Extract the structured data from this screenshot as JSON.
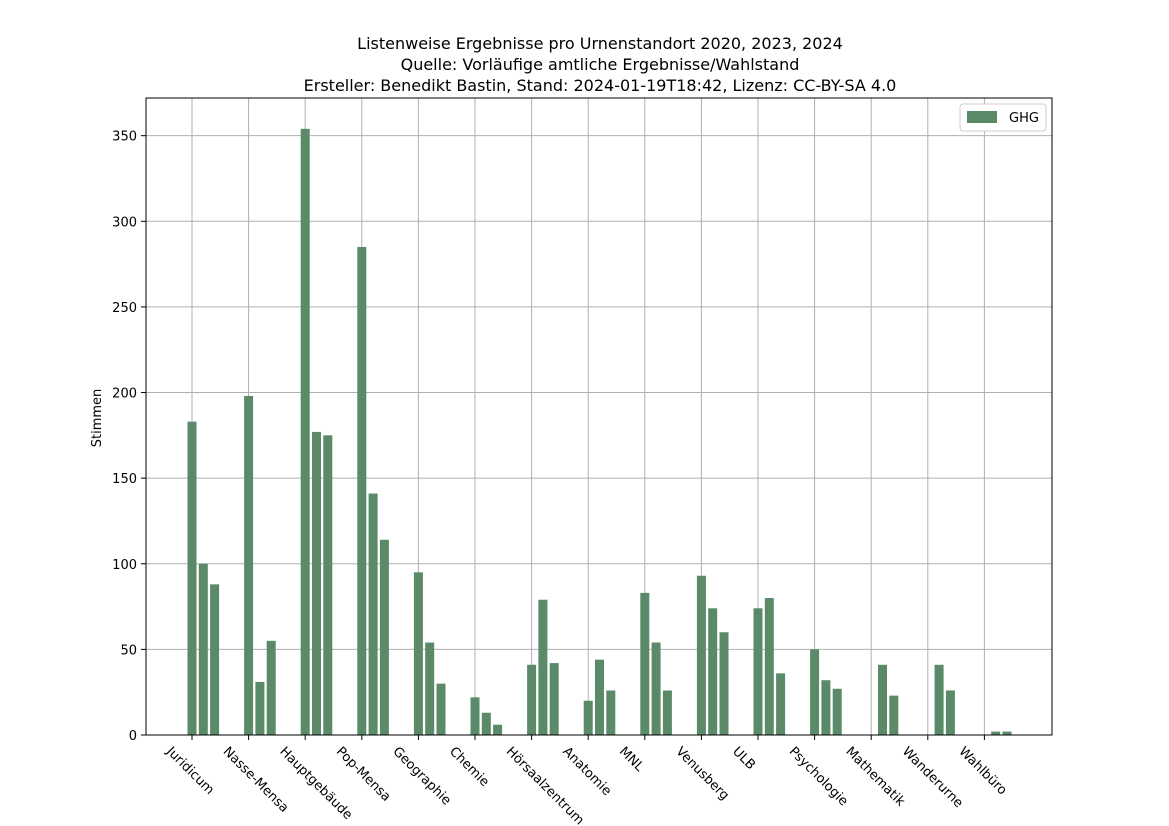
{
  "chart_data": {
    "type": "bar",
    "title_lines": [
      "Listenweise Ergebnisse pro Urnenstandort 2020, 2023, 2024",
      "Quelle: Vorläufige amtliche Ergebnisse/Wahlstand",
      "Ersteller: Benedikt Bastin, Stand: 2024-01-19T18:42, Lizenz: CC-BY-SA 4.0"
    ],
    "xlabel": "",
    "ylabel": "Stimmen",
    "ylim": [
      0,
      372
    ],
    "yticks": [
      0,
      50,
      100,
      150,
      200,
      250,
      300,
      350
    ],
    "grid": true,
    "legend": {
      "position": "top-right",
      "entries": [
        "GHG"
      ]
    },
    "categories": [
      "Juridicum",
      "Nasse-Mensa",
      "Hauptgebäude",
      "Pop-Mensa",
      "Geographie",
      "Chemie",
      "Hörsaalzentrum",
      "Anatomie",
      "MNL",
      "Venusberg",
      "ULB",
      "Psychologie",
      "Mathematik",
      "Wanderurne",
      "Wahlbüro"
    ],
    "series": [
      {
        "name": "GHG",
        "color": "#5a8a68",
        "values": [
          [
            183,
            100,
            88
          ],
          [
            198,
            31,
            55
          ],
          [
            354,
            177,
            175
          ],
          [
            285,
            141,
            114
          ],
          [
            95,
            54,
            30
          ],
          [
            22,
            13,
            6
          ],
          [
            41,
            79,
            42
          ],
          [
            20,
            44,
            26
          ],
          [
            83,
            54,
            26
          ],
          [
            93,
            74,
            60
          ],
          [
            74,
            80,
            36
          ],
          [
            50,
            32,
            27
          ],
          [
            null,
            41,
            23
          ],
          [
            null,
            41,
            26
          ],
          [
            null,
            2,
            2
          ]
        ]
      }
    ]
  }
}
